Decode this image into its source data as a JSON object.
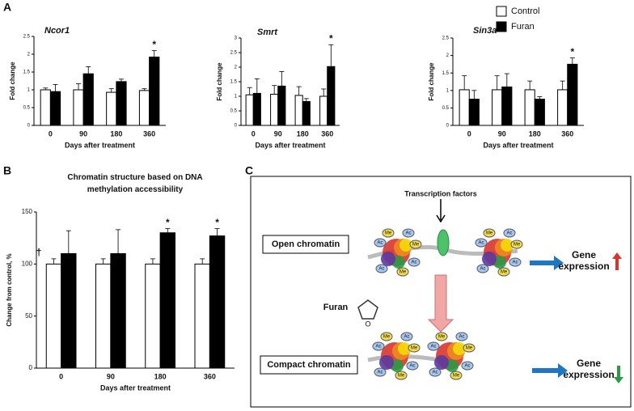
{
  "chart_data": [
    {
      "type": "bar",
      "panel": "A",
      "title": "Ncor1",
      "xlabel": "Days after treatment",
      "ylabel": "Fold change",
      "categories": [
        "0",
        "90",
        "180",
        "360"
      ],
      "series": [
        {
          "name": "Control",
          "color": "#ffffff",
          "values": [
            1.0,
            1.0,
            0.93,
            0.98
          ],
          "errors": [
            0.05,
            0.17,
            0.1,
            0.05
          ]
        },
        {
          "name": "Furan",
          "color": "#000000",
          "values": [
            0.95,
            1.45,
            1.23,
            1.92
          ],
          "errors": [
            0.2,
            0.2,
            0.07,
            0.18
          ]
        }
      ],
      "ylim": [
        0,
        2.5
      ],
      "yticks": [
        0,
        0.5,
        1,
        1.5,
        2,
        2.5
      ],
      "annotations": [
        {
          "text": "*",
          "category": "360",
          "series": 1
        }
      ]
    },
    {
      "type": "bar",
      "title": "Smrt",
      "xlabel": "Days after treatment",
      "ylabel": "Fold change",
      "categories": [
        "0",
        "90",
        "180",
        "360"
      ],
      "series": [
        {
          "color": "#ffffff",
          "values": [
            1.05,
            1.07,
            1.03,
            1.0
          ],
          "errors": [
            0.25,
            0.3,
            0.3,
            0.25
          ]
        },
        {
          "color": "#000000",
          "values": [
            1.1,
            1.35,
            0.82,
            2.02
          ],
          "errors": [
            0.5,
            0.5,
            0.1,
            0.75
          ]
        }
      ],
      "ylim": [
        0,
        3
      ],
      "yticks": [
        0,
        0.5,
        1,
        1.5,
        2,
        2.5,
        3
      ],
      "annotations": [
        {
          "text": "*",
          "category": "360",
          "series": 1
        }
      ]
    },
    {
      "type": "bar",
      "title": "Sin3a",
      "xlabel": "Days after treatment",
      "ylabel": "Fold change",
      "categories": [
        "0",
        "90",
        "180",
        "360"
      ],
      "series": [
        {
          "color": "#ffffff",
          "values": [
            1.02,
            1.02,
            1.02,
            1.02
          ],
          "errors": [
            0.4,
            0.4,
            0.25,
            0.25
          ]
        },
        {
          "color": "#000000",
          "values": [
            0.75,
            1.1,
            0.75,
            1.75
          ],
          "errors": [
            0.25,
            0.38,
            0.07,
            0.18
          ]
        }
      ],
      "ylim": [
        0,
        2.5
      ],
      "yticks": [
        0,
        0.5,
        1,
        1.5,
        2,
        2.5
      ],
      "annotations": [
        {
          "text": "*",
          "category": "360",
          "series": 1
        }
      ]
    },
    {
      "type": "bar",
      "panel": "B",
      "title": "Chromatin structure based on DNA methylation accessibility",
      "xlabel": "Days after treatment",
      "ylabel": "Change from control, %",
      "categories": [
        "0",
        "90",
        "180",
        "360"
      ],
      "series": [
        {
          "color": "#ffffff",
          "values": [
            100,
            100,
            100,
            100
          ],
          "errors": [
            5,
            5,
            5,
            5
          ]
        },
        {
          "color": "#000000",
          "values": [
            110,
            110,
            130,
            127
          ],
          "errors": [
            22,
            23,
            4,
            7
          ]
        }
      ],
      "ylim": [
        0,
        150
      ],
      "yticks": [
        0,
        50,
        100,
        150
      ],
      "annotations": [
        {
          "text": "†",
          "category": "0",
          "series": 0
        },
        {
          "text": "*",
          "category": "180",
          "series": 1
        },
        {
          "text": "*",
          "category": "360",
          "series": 1
        }
      ]
    }
  ],
  "diagram": {
    "panel": "C",
    "transcription_factors": "Transcription factors",
    "open": "Open chromatin",
    "compact": "Compact chromatin",
    "furan": "Furan",
    "gene_expression_up": "Gene expression",
    "gene_expression_down": "Gene expression",
    "marks": [
      "Ac",
      "Me"
    ]
  }
}
